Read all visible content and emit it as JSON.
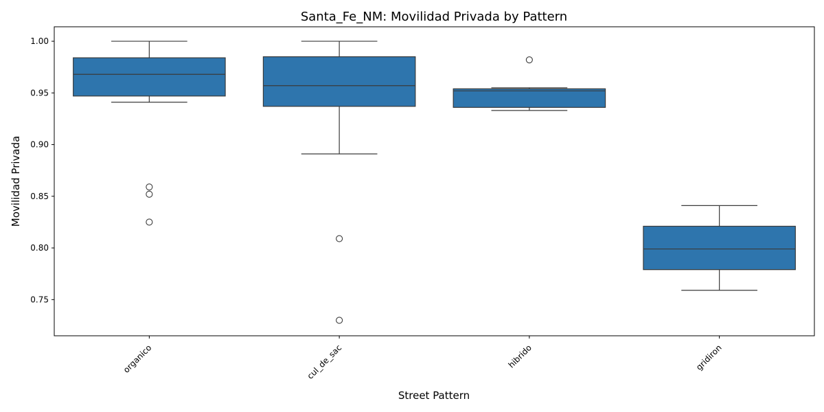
{
  "chart_data": {
    "type": "box",
    "title": "Santa_Fe_NM: Movilidad Privada by Pattern",
    "xlabel": "Street Pattern",
    "ylabel": "Movilidad Privada",
    "ylim": [
      0.715,
      1.014
    ],
    "yticks": [
      0.75,
      0.8,
      0.85,
      0.9,
      0.95,
      1.0
    ],
    "ytick_labels": [
      "0.75",
      "0.80",
      "0.85",
      "0.90",
      "0.95",
      "1.00"
    ],
    "grid": false,
    "legend": "none",
    "box_color": "#2e75ad",
    "line_color": "#3a3a3a",
    "categories": [
      "organico",
      "cul_de_sac",
      "hibrido",
      "gridiron"
    ],
    "boxes": [
      {
        "category": "organico",
        "whisker_low": 0.941,
        "q1": 0.947,
        "median": 0.968,
        "q3": 0.984,
        "whisker_high": 1.0,
        "outliers": [
          0.859,
          0.852,
          0.825
        ]
      },
      {
        "category": "cul_de_sac",
        "whisker_low": 0.891,
        "q1": 0.937,
        "median": 0.957,
        "q3": 0.985,
        "whisker_high": 1.0,
        "outliers": [
          0.809,
          0.73
        ]
      },
      {
        "category": "hibrido",
        "whisker_low": 0.933,
        "q1": 0.936,
        "median": 0.952,
        "q3": 0.954,
        "whisker_high": 0.955,
        "outliers": [
          0.982
        ]
      },
      {
        "category": "gridiron",
        "whisker_low": 0.759,
        "q1": 0.779,
        "median": 0.799,
        "q3": 0.821,
        "whisker_high": 0.841,
        "outliers": []
      }
    ]
  }
}
